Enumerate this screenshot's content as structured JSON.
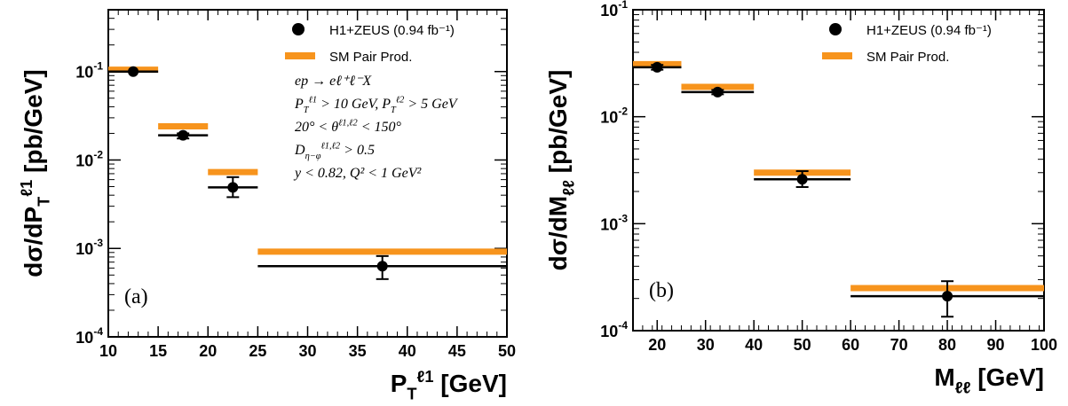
{
  "colors": {
    "data": "#000000",
    "sm": "#f7941d",
    "frame": "#000000"
  },
  "chart_data": [
    {
      "type": "scatter",
      "panel_label": "(a)",
      "xlabel": "P_T^ℓ1 [GeV]",
      "ylabel": "dσ/dP_T^ℓ1 [pb/GeV]",
      "xlim": [
        10,
        50
      ],
      "ylim": [
        0.0001,
        0.5
      ],
      "yscale": "log",
      "x_ticks": [
        "10",
        "15",
        "20",
        "25",
        "30",
        "35",
        "40",
        "45",
        "50"
      ],
      "legend_position": "top-right",
      "series": [
        {
          "name": "H1+ZEUS (0.94 fb⁻¹)",
          "bins": [
            {
              "lo": 10,
              "hi": 15,
              "x": 12.5,
              "y": 0.1,
              "err_up": 0.1,
              "err_down": 0.1
            },
            {
              "lo": 15,
              "hi": 20,
              "x": 17.5,
              "y": 0.019,
              "err_up": 0.02,
              "err_down": 0.0175
            },
            {
              "lo": 20,
              "hi": 25,
              "x": 22.5,
              "y": 0.0049,
              "err_up": 0.0064,
              "err_down": 0.0038
            },
            {
              "lo": 25,
              "hi": 50,
              "x": 37.5,
              "y": 0.00063,
              "err_up": 0.00082,
              "err_down": 0.00045
            }
          ]
        },
        {
          "name": "SM Pair Prod.",
          "bins": [
            {
              "lo": 10,
              "hi": 15,
              "y": 0.105
            },
            {
              "lo": 15,
              "hi": 20,
              "y": 0.024
            },
            {
              "lo": 20,
              "hi": 25,
              "y": 0.0073
            },
            {
              "lo": 25,
              "hi": 50,
              "y": 0.00092
            }
          ]
        }
      ],
      "cuts": [
        "ep → eℓ⁺ℓ⁻X",
        "P_T^ℓ1 > 10 GeV, P_T^ℓ2 > 5 GeV",
        "20° < θ^ℓ1,ℓ2 < 150°",
        "D_η−φ^ℓ1,ℓ2 > 0.5",
        "y < 0.82, Q² < 1 GeV²"
      ]
    },
    {
      "type": "scatter",
      "panel_label": "(b)",
      "xlabel": "M_ℓℓ [GeV]",
      "ylabel": "dσ/dM_ℓℓ [pb/GeV]",
      "xlim": [
        15,
        100
      ],
      "ylim": [
        0.0001,
        0.1
      ],
      "yscale": "log",
      "x_ticks": [
        "20",
        "30",
        "40",
        "50",
        "60",
        "70",
        "80",
        "90",
        "100"
      ],
      "legend_position": "top-right",
      "series": [
        {
          "name": "H1+ZEUS (0.94 fb⁻¹)",
          "bins": [
            {
              "lo": 15,
              "hi": 25,
              "x": 20,
              "y": 0.029,
              "err_up": 0.0305,
              "err_down": 0.0275
            },
            {
              "lo": 25,
              "hi": 40,
              "x": 32.5,
              "y": 0.017,
              "err_up": 0.0178,
              "err_down": 0.0162
            },
            {
              "lo": 40,
              "hi": 60,
              "x": 50,
              "y": 0.0026,
              "err_up": 0.0031,
              "err_down": 0.0022
            },
            {
              "lo": 60,
              "hi": 100,
              "x": 80,
              "y": 0.00021,
              "err_up": 0.00029,
              "err_down": 0.000135
            }
          ]
        },
        {
          "name": "SM Pair Prod.",
          "bins": [
            {
              "lo": 15,
              "hi": 25,
              "y": 0.031
            },
            {
              "lo": 25,
              "hi": 40,
              "y": 0.019
            },
            {
              "lo": 40,
              "hi": 60,
              "y": 0.003
            },
            {
              "lo": 60,
              "hi": 100,
              "y": 0.00025
            }
          ]
        }
      ]
    }
  ]
}
